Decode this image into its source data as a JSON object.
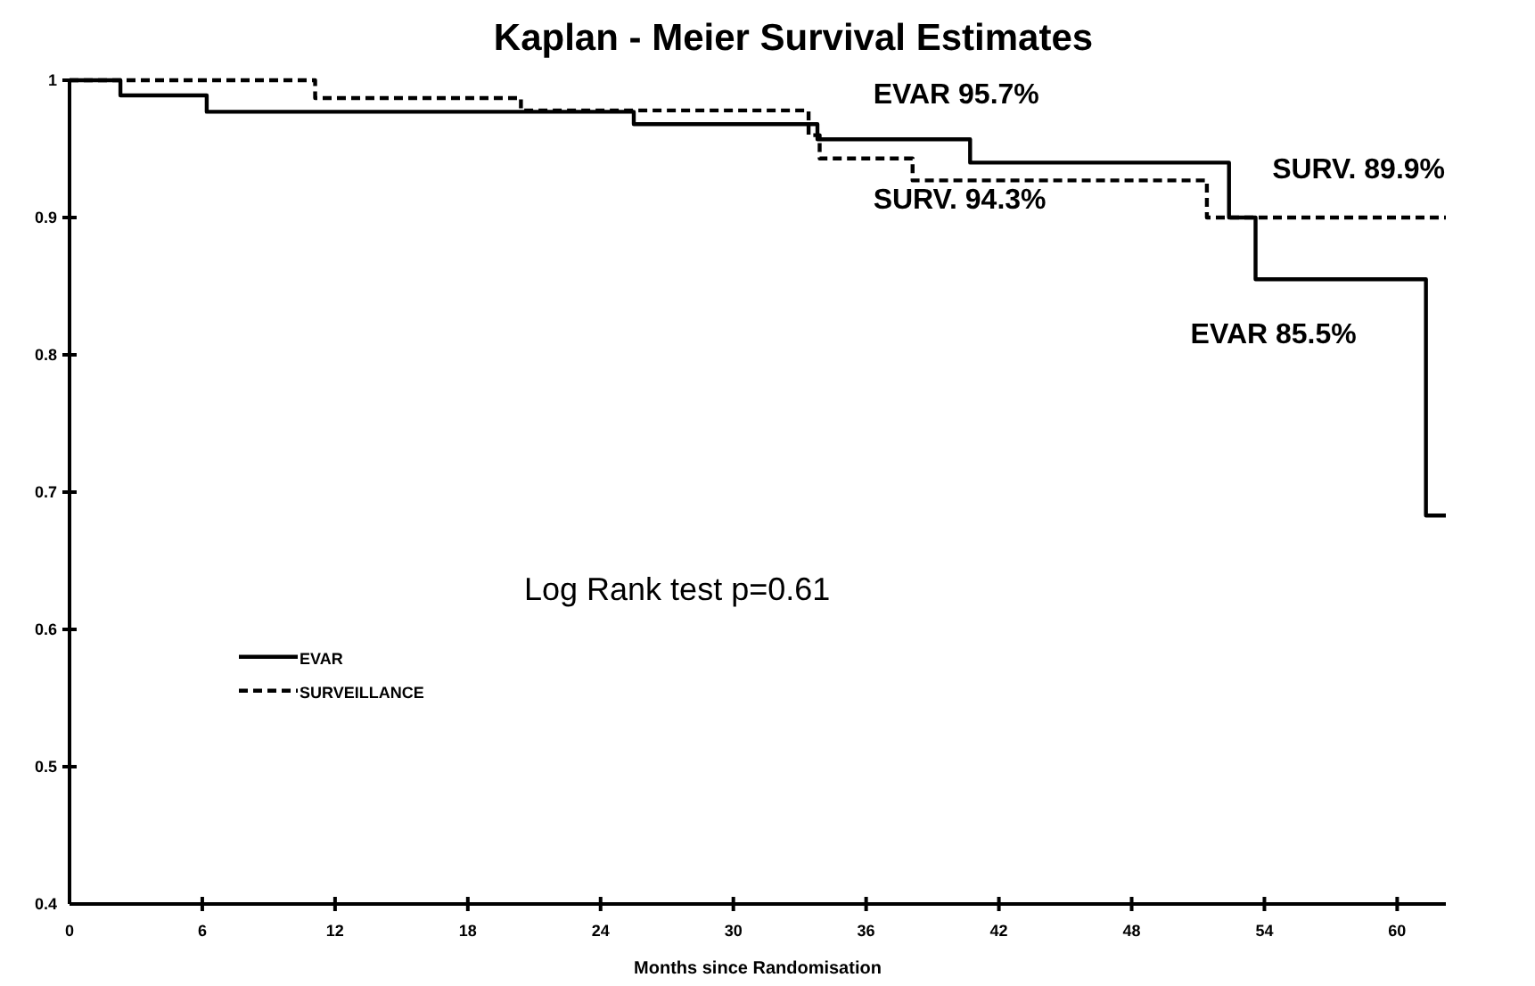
{
  "chart_data": {
    "type": "step",
    "title": "Kaplan - Meier Survival Estimates",
    "xlabel": "Months since Randomisation",
    "xlim": [
      0,
      62.2
    ],
    "xticks": [
      0,
      6,
      12,
      18,
      24,
      30,
      36,
      42,
      48,
      54,
      60
    ],
    "ylim": [
      0.4,
      1
    ],
    "yticks": [
      0.4,
      0.5,
      0.6,
      0.7,
      0.8,
      0.9,
      1
    ],
    "legend": "left",
    "grid": false,
    "series": [
      {
        "name": "EVAR",
        "color": "#000000",
        "line_style": "solid",
        "x": [
          0,
          2.3,
          6.2,
          25.5,
          33.8,
          40.7,
          52.4,
          53.6,
          61.3,
          62.2
        ],
        "values": [
          1,
          0.989,
          0.977,
          0.968,
          0.957,
          0.94,
          0.9,
          0.855,
          0.683,
          0.683
        ]
      },
      {
        "name": "SURVEILLANCE",
        "color": "#000000",
        "line_style": "dashed",
        "x": [
          0,
          11.1,
          20.4,
          33.4,
          33.9,
          38.1,
          51.4,
          62.2
        ],
        "values": [
          1,
          0.987,
          0.978,
          0.96,
          0.943,
          0.927,
          0.9,
          0.9
        ]
      }
    ],
    "annotations": [
      {
        "text": "EVAR  95.7%",
        "x": 36,
        "y": 0.957
      },
      {
        "text": "SURV.  94.3%",
        "x": 36,
        "y": 0.943
      },
      {
        "text": "SURV. 89.9%",
        "x": 62,
        "y": 0.9
      },
      {
        "text": "EVAR 85.5%",
        "x": 58,
        "y": 0.855
      },
      "Log Rank test p=0.61"
    ]
  }
}
